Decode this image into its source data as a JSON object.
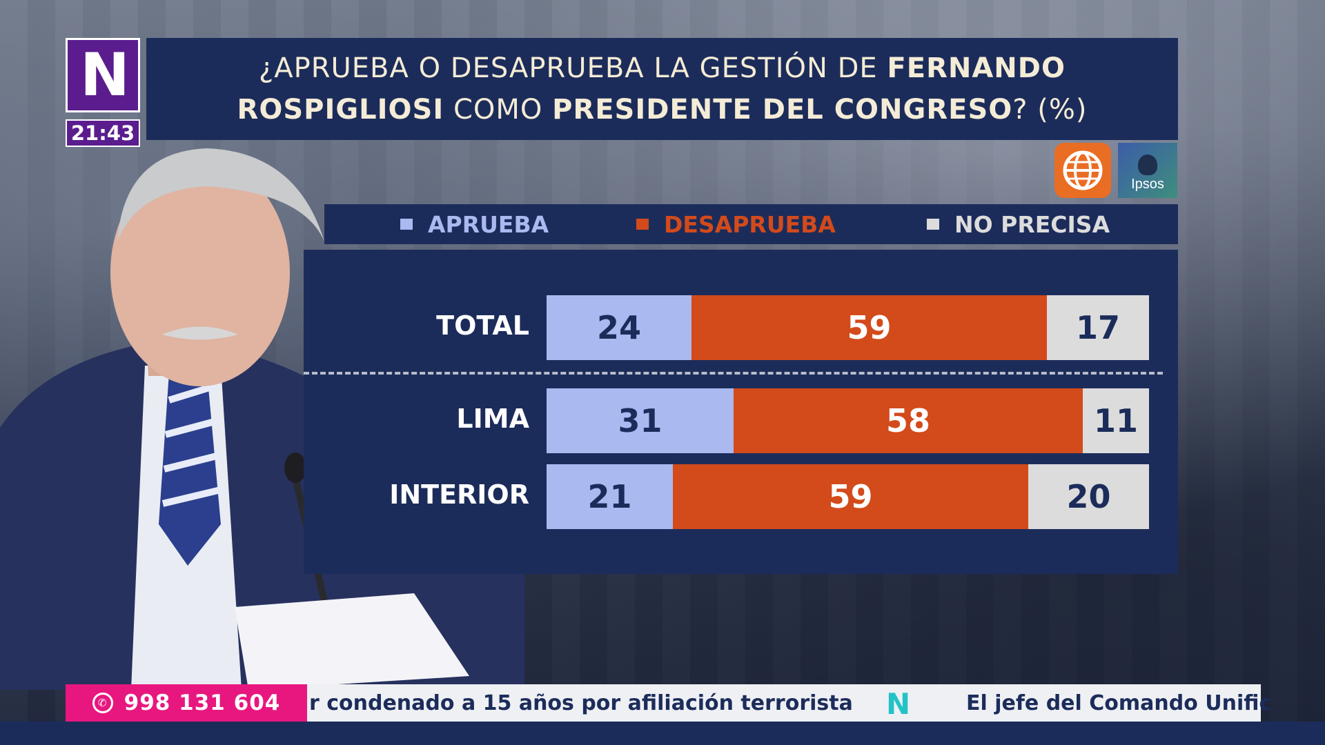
{
  "channel": {
    "logo_letter": "N",
    "clock": "21:43"
  },
  "title": {
    "line1_regular": "¿APRUEBA O DESAPRUEBA LA GESTIÓN DE ",
    "line1_bold": "FERNANDO",
    "line2_bold_a": "ROSPIGLIOSI",
    "line2_regular_a": " COMO ",
    "line2_bold_b": "PRESIDENTE DEL CONGRESO",
    "line2_regular_b": "? (%)"
  },
  "sources": {
    "globe_icon": "globe-icon",
    "ipsos_text": "Ipsos"
  },
  "colors": {
    "aprueba": "#aab9f0",
    "desaprueba": "#d34a1b",
    "no_precisa": "#dcdcdc",
    "panel": "#1c2c5a",
    "title_text": "#f4ecd6"
  },
  "chart_data": {
    "type": "bar",
    "orientation": "horizontal-stacked-100",
    "title": "¿APRUEBA O DESAPRUEBA LA GESTIÓN DE FERNANDO ROSPIGLIOSI COMO PRESIDENTE DEL CONGRESO? (%)",
    "categories": [
      "TOTAL",
      "LIMA",
      "INTERIOR"
    ],
    "series": [
      {
        "name": "APRUEBA",
        "values": [
          24,
          31,
          21
        ]
      },
      {
        "name": "DESAPRUEBA",
        "values": [
          59,
          58,
          59
        ]
      },
      {
        "name": "NO PRECISA",
        "values": [
          17,
          11,
          20
        ]
      }
    ],
    "xlim": [
      0,
      100
    ],
    "legend": "top",
    "separator_after": "TOTAL"
  },
  "ticker": {
    "phone": "998 131 604",
    "text_left": "r condenado a 15 años por afiliación terrorista",
    "text_right": "El jefe del Comando Unific",
    "separator_logo": "N"
  }
}
